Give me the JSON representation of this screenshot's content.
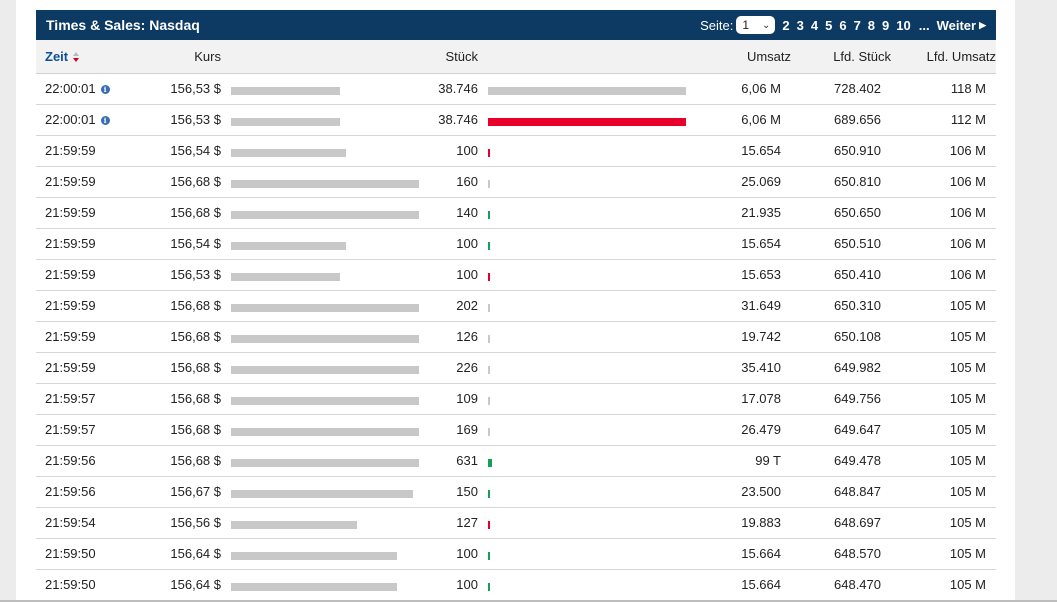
{
  "widget": {
    "title": "Times & Sales: Nasdaq",
    "pager": {
      "label": "Seite:",
      "selected": "1",
      "pages": [
        "2",
        "3",
        "4",
        "5",
        "6",
        "7",
        "8",
        "9",
        "10"
      ],
      "ellipsis": "...",
      "next": "Weiter"
    }
  },
  "table": {
    "headers": {
      "zeit": "Zeit",
      "kurs": "Kurs",
      "stueck": "Stück",
      "umsatz": "Umsatz",
      "lfd_stueck": "Lfd. Stück",
      "lfd_umsatz": "Lfd. Umsatz"
    },
    "colors": {
      "header_bg": "#0d3a63",
      "price_bar": "#c8c8c8",
      "down": "#e8002d",
      "up": "#15a05a",
      "neutral": "#c8c8c8"
    },
    "rows": [
      {
        "zeit": "22:00:01",
        "info": true,
        "kurs": "156,53 $",
        "kurs_level": 0.545,
        "stueck": "38.746",
        "volume_level": 0.93,
        "direction": "neutral",
        "umsatz": "6,06 M",
        "lfd_stueck": "728.402",
        "lfd_umsatz": "118 M"
      },
      {
        "zeit": "22:00:01",
        "info": true,
        "kurs": "156,53 $",
        "kurs_level": 0.545,
        "stueck": "38.746",
        "volume_level": 0.93,
        "direction": "down",
        "umsatz": "6,06 M",
        "lfd_stueck": "689.656",
        "lfd_umsatz": "112 M"
      },
      {
        "zeit": "21:59:59",
        "info": false,
        "kurs": "156,54 $",
        "kurs_level": 0.575,
        "stueck": "100",
        "volume_level": 0.01,
        "direction": "down",
        "umsatz": "15.654",
        "lfd_stueck": "650.910",
        "lfd_umsatz": "106 M"
      },
      {
        "zeit": "21:59:59",
        "info": false,
        "kurs": "156,68 $",
        "kurs_level": 0.94,
        "stueck": "160",
        "volume_level": 0.01,
        "direction": "neutral",
        "umsatz": "25.069",
        "lfd_stueck": "650.810",
        "lfd_umsatz": "106 M"
      },
      {
        "zeit": "21:59:59",
        "info": false,
        "kurs": "156,68 $",
        "kurs_level": 0.94,
        "stueck": "140",
        "volume_level": 0.01,
        "direction": "up",
        "umsatz": "21.935",
        "lfd_stueck": "650.650",
        "lfd_umsatz": "106 M"
      },
      {
        "zeit": "21:59:59",
        "info": false,
        "kurs": "156,54 $",
        "kurs_level": 0.575,
        "stueck": "100",
        "volume_level": 0.01,
        "direction": "up",
        "umsatz": "15.654",
        "lfd_stueck": "650.510",
        "lfd_umsatz": "106 M"
      },
      {
        "zeit": "21:59:59",
        "info": false,
        "kurs": "156,53 $",
        "kurs_level": 0.545,
        "stueck": "100",
        "volume_level": 0.01,
        "direction": "down",
        "umsatz": "15.653",
        "lfd_stueck": "650.410",
        "lfd_umsatz": "106 M"
      },
      {
        "zeit": "21:59:59",
        "info": false,
        "kurs": "156,68 $",
        "kurs_level": 0.94,
        "stueck": "202",
        "volume_level": 0.01,
        "direction": "neutral",
        "umsatz": "31.649",
        "lfd_stueck": "650.310",
        "lfd_umsatz": "105 M"
      },
      {
        "zeit": "21:59:59",
        "info": false,
        "kurs": "156,68 $",
        "kurs_level": 0.94,
        "stueck": "126",
        "volume_level": 0.01,
        "direction": "neutral",
        "umsatz": "19.742",
        "lfd_stueck": "650.108",
        "lfd_umsatz": "105 M"
      },
      {
        "zeit": "21:59:59",
        "info": false,
        "kurs": "156,68 $",
        "kurs_level": 0.94,
        "stueck": "226",
        "volume_level": 0.01,
        "direction": "neutral",
        "umsatz": "35.410",
        "lfd_stueck": "649.982",
        "lfd_umsatz": "105 M"
      },
      {
        "zeit": "21:59:57",
        "info": false,
        "kurs": "156,68 $",
        "kurs_level": 0.94,
        "stueck": "109",
        "volume_level": 0.01,
        "direction": "neutral",
        "umsatz": "17.078",
        "lfd_stueck": "649.756",
        "lfd_umsatz": "105 M"
      },
      {
        "zeit": "21:59:57",
        "info": false,
        "kurs": "156,68 $",
        "kurs_level": 0.94,
        "stueck": "169",
        "volume_level": 0.01,
        "direction": "neutral",
        "umsatz": "26.479",
        "lfd_stueck": "649.647",
        "lfd_umsatz": "105 M"
      },
      {
        "zeit": "21:59:56",
        "info": false,
        "kurs": "156,68 $",
        "kurs_level": 0.94,
        "stueck": "631",
        "volume_level": 0.02,
        "direction": "up",
        "umsatz": "99 T",
        "lfd_stueck": "649.478",
        "lfd_umsatz": "105 M"
      },
      {
        "zeit": "21:59:56",
        "info": false,
        "kurs": "156,67 $",
        "kurs_level": 0.91,
        "stueck": "150",
        "volume_level": 0.01,
        "direction": "up",
        "umsatz": "23.500",
        "lfd_stueck": "648.847",
        "lfd_umsatz": "105 M"
      },
      {
        "zeit": "21:59:54",
        "info": false,
        "kurs": "156,56 $",
        "kurs_level": 0.63,
        "stueck": "127",
        "volume_level": 0.01,
        "direction": "down",
        "umsatz": "19.883",
        "lfd_stueck": "648.697",
        "lfd_umsatz": "105 M"
      },
      {
        "zeit": "21:59:50",
        "info": false,
        "kurs": "156,64 $",
        "kurs_level": 0.83,
        "stueck": "100",
        "volume_level": 0.01,
        "direction": "up",
        "umsatz": "15.664",
        "lfd_stueck": "648.570",
        "lfd_umsatz": "105 M"
      },
      {
        "zeit": "21:59:50",
        "info": false,
        "kurs": "156,64 $",
        "kurs_level": 0.83,
        "stueck": "100",
        "volume_level": 0.01,
        "direction": "up",
        "umsatz": "15.664",
        "lfd_stueck": "648.470",
        "lfd_umsatz": "105 M"
      }
    ]
  }
}
